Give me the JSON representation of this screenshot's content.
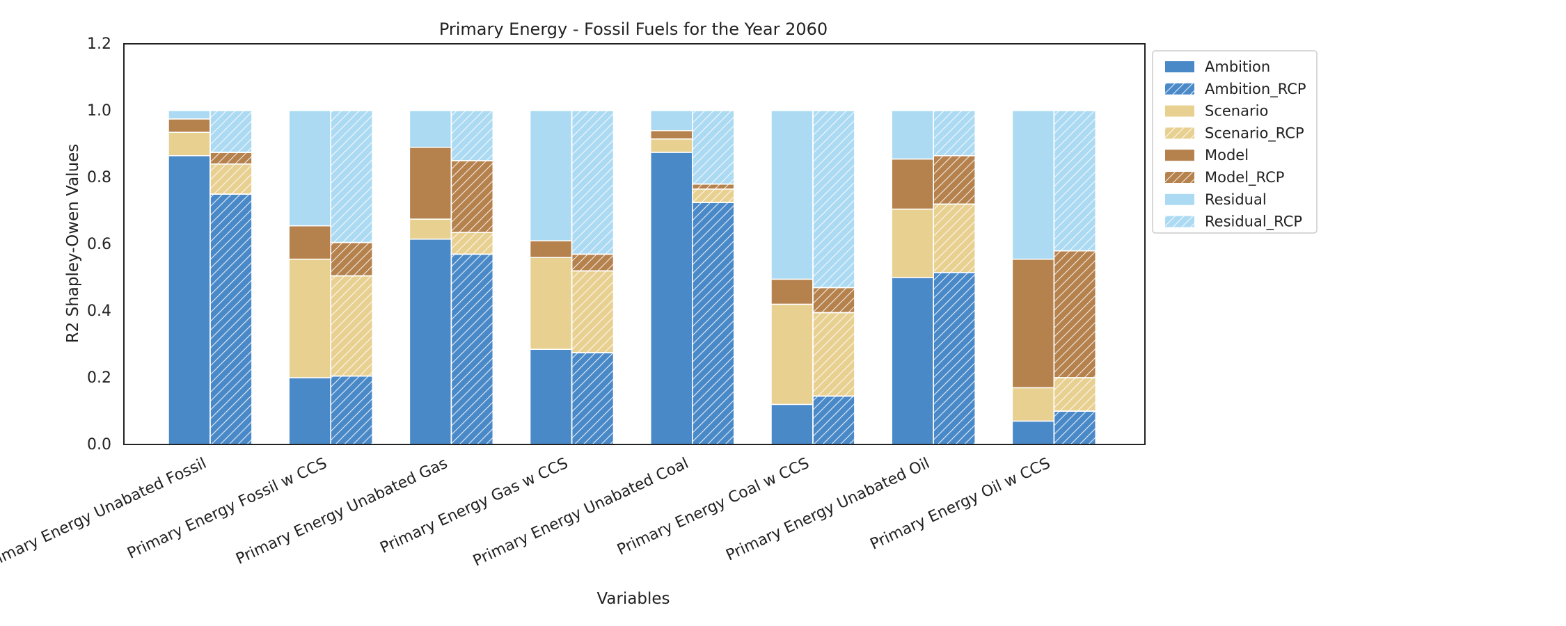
{
  "chart_data": {
    "type": "bar",
    "stacked": true,
    "grouped_pairs": true,
    "title": "Primary Energy - Fossil Fuels for the Year 2060",
    "xlabel": "Variables",
    "ylabel": "R2 Shapley-Owen Values",
    "ylim": [
      0,
      1.2
    ],
    "yticks": [
      "0.0",
      "0.2",
      "0.4",
      "0.6",
      "0.8",
      "1.0",
      "1.2"
    ],
    "grid": false,
    "legend_position": "outside-top-right",
    "categories": [
      "Primary Energy Unabated Fossil",
      "Primary Energy Fossil w CCS",
      "Primary Energy Unabated Gas",
      "Primary Energy Gas w CCS",
      "Primary Energy Unabated Coal",
      "Primary Energy Coal w CCS",
      "Primary Energy Unabated Oil",
      "Primary Energy Oil w CCS"
    ],
    "series": [
      {
        "name": "Ambition",
        "group": "base",
        "component": "Ambition",
        "values": [
          0.865,
          0.2,
          0.615,
          0.285,
          0.875,
          0.12,
          0.5,
          0.07
        ]
      },
      {
        "name": "Scenario",
        "group": "base",
        "component": "Scenario",
        "values": [
          0.07,
          0.355,
          0.06,
          0.275,
          0.04,
          0.3,
          0.205,
          0.1
        ]
      },
      {
        "name": "Model",
        "group": "base",
        "component": "Model",
        "values": [
          0.04,
          0.1,
          0.215,
          0.05,
          0.025,
          0.075,
          0.15,
          0.385
        ]
      },
      {
        "name": "Residual",
        "group": "base",
        "component": "Residual",
        "values": [
          0.025,
          0.345,
          0.11,
          0.39,
          0.06,
          0.505,
          0.145,
          0.445
        ]
      },
      {
        "name": "Ambition_RCP",
        "group": "rcp",
        "component": "Ambition",
        "values": [
          0.75,
          0.205,
          0.57,
          0.275,
          0.725,
          0.145,
          0.515,
          0.1
        ]
      },
      {
        "name": "Scenario_RCP",
        "group": "rcp",
        "component": "Scenario",
        "values": [
          0.09,
          0.3,
          0.065,
          0.245,
          0.04,
          0.25,
          0.205,
          0.1
        ]
      },
      {
        "name": "Model_RCP",
        "group": "rcp",
        "component": "Model",
        "values": [
          0.035,
          0.1,
          0.215,
          0.05,
          0.015,
          0.075,
          0.145,
          0.38
        ]
      },
      {
        "name": "Residual_RCP",
        "group": "rcp",
        "component": "Residual",
        "values": [
          0.125,
          0.395,
          0.15,
          0.43,
          0.22,
          0.53,
          0.135,
          0.42
        ]
      }
    ],
    "colors": {
      "Ambition": "#4a89c8",
      "Scenario": "#e8d091",
      "Model": "#b5814c",
      "Residual": "#acdaf2"
    },
    "legend": [
      "Ambition",
      "Ambition_RCP",
      "Scenario",
      "Scenario_RCP",
      "Model",
      "Model_RCP",
      "Residual",
      "Residual_RCP"
    ]
  }
}
